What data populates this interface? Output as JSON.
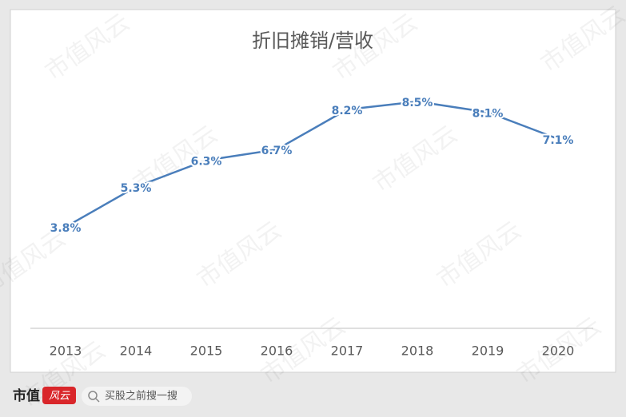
{
  "chart_data": {
    "type": "line",
    "title": "折旧摊销/营收",
    "categories": [
      "2013",
      "2014",
      "2015",
      "2016",
      "2017",
      "2018",
      "2019",
      "2020"
    ],
    "series": [
      {
        "color": "#4a7ebb",
        "values": [
          3.8,
          5.3,
          6.3,
          6.7,
          8.2,
          8.5,
          8.1,
          7.1
        ],
        "value_labels": [
          "3.8%",
          "5.3%",
          "6.3%",
          "6.7%",
          "8.2%",
          "8.5%",
          "8.1%",
          "7.1%"
        ]
      }
    ],
    "ylim": [
      0,
      10
    ]
  },
  "watermark": "市值风云",
  "footer": {
    "logo": "市值",
    "logo_mark": "风云",
    "search": "买股之前搜一搜"
  }
}
